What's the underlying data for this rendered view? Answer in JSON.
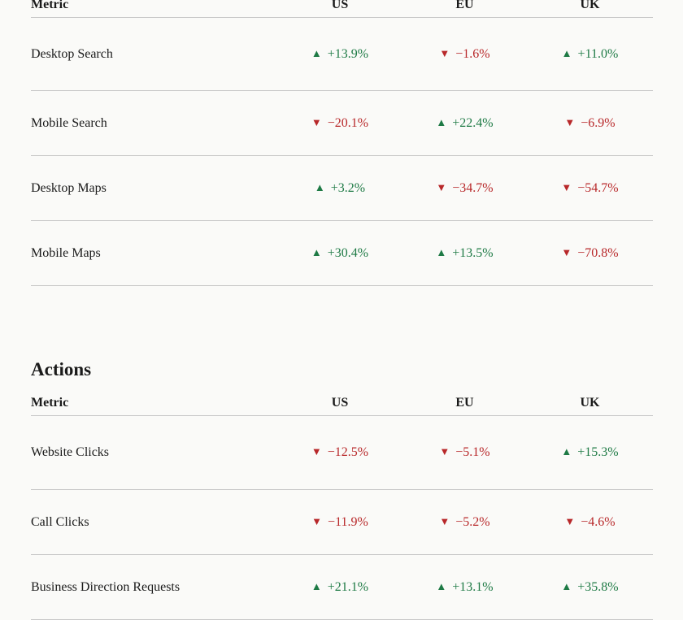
{
  "impressions": {
    "headers": {
      "metric": "Metric",
      "us": "US",
      "eu": "EU",
      "uk": "UK"
    },
    "rows": [
      {
        "metric": "Desktop Search",
        "us": {
          "arrow": "▲",
          "text": "+13.9%",
          "dir": "up"
        },
        "eu": {
          "arrow": "▼",
          "text": "−1.6%",
          "dir": "down"
        },
        "uk": {
          "arrow": "▲",
          "text": "+11.0%",
          "dir": "up"
        }
      },
      {
        "metric": "Mobile Search",
        "us": {
          "arrow": "▼",
          "text": "−20.1%",
          "dir": "down"
        },
        "eu": {
          "arrow": "▲",
          "text": "+22.4%",
          "dir": "up"
        },
        "uk": {
          "arrow": "▼",
          "text": "−6.9%",
          "dir": "down"
        }
      },
      {
        "metric": "Desktop Maps",
        "us": {
          "arrow": "▲",
          "text": "+3.2%",
          "dir": "up"
        },
        "eu": {
          "arrow": "▼",
          "text": "−34.7%",
          "dir": "down"
        },
        "uk": {
          "arrow": "▼",
          "text": "−54.7%",
          "dir": "down"
        }
      },
      {
        "metric": "Mobile Maps",
        "us": {
          "arrow": "▲",
          "text": "+30.4%",
          "dir": "up"
        },
        "eu": {
          "arrow": "▲",
          "text": "+13.5%",
          "dir": "up"
        },
        "uk": {
          "arrow": "▼",
          "text": "−70.8%",
          "dir": "down"
        }
      }
    ]
  },
  "actions": {
    "title": "Actions",
    "headers": {
      "metric": "Metric",
      "us": "US",
      "eu": "EU",
      "uk": "UK"
    },
    "rows": [
      {
        "metric": "Website Clicks",
        "us": {
          "arrow": "▼",
          "text": "−12.5%",
          "dir": "down"
        },
        "eu": {
          "arrow": "▼",
          "text": "−5.1%",
          "dir": "down"
        },
        "uk": {
          "arrow": "▲",
          "text": "+15.3%",
          "dir": "up"
        }
      },
      {
        "metric": "Call Clicks",
        "us": {
          "arrow": "▼",
          "text": "−11.9%",
          "dir": "down"
        },
        "eu": {
          "arrow": "▼",
          "text": "−5.2%",
          "dir": "down"
        },
        "uk": {
          "arrow": "▼",
          "text": "−4.6%",
          "dir": "down"
        }
      },
      {
        "metric": "Business Direction Requests",
        "us": {
          "arrow": "▲",
          "text": "+21.1%",
          "dir": "up"
        },
        "eu": {
          "arrow": "▲",
          "text": "+13.1%",
          "dir": "up"
        },
        "uk": {
          "arrow": "▲",
          "text": "+35.8%",
          "dir": "up"
        }
      }
    ]
  },
  "colors": {
    "up": "#1e7a45",
    "down": "#b8282a",
    "rule": "#c8c8c8",
    "background": "#fafaf8"
  }
}
